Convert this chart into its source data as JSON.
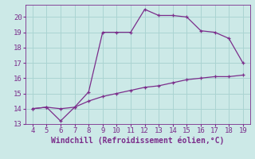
{
  "title": "",
  "xlabel": "Windchill (Refroidissement éolien,°C)",
  "xlim": [
    3.5,
    19.5
  ],
  "ylim": [
    13,
    20.8
  ],
  "xticks": [
    4,
    5,
    6,
    7,
    8,
    9,
    10,
    11,
    12,
    13,
    14,
    15,
    16,
    17,
    18,
    19
  ],
  "yticks": [
    13,
    14,
    15,
    16,
    17,
    18,
    19,
    20
  ],
  "bg_color": "#cce9e7",
  "line_color": "#7b2d8b",
  "line1_x": [
    4,
    5,
    6,
    7,
    8,
    9,
    10,
    11,
    12,
    13,
    14,
    15,
    16,
    17,
    18,
    19
  ],
  "line1_y": [
    14.0,
    14.1,
    13.2,
    14.1,
    15.1,
    19.0,
    19.0,
    19.0,
    20.5,
    20.1,
    20.1,
    20.0,
    19.1,
    19.0,
    18.6,
    17.0
  ],
  "line2_x": [
    4,
    5,
    6,
    7,
    8,
    9,
    10,
    11,
    12,
    13,
    14,
    15,
    16,
    17,
    18,
    19
  ],
  "line2_y": [
    14.0,
    14.1,
    14.0,
    14.1,
    14.5,
    14.8,
    15.0,
    15.2,
    15.4,
    15.5,
    15.7,
    15.9,
    16.0,
    16.1,
    16.1,
    16.2
  ],
  "grid_color": "#aad4d2",
  "font_color": "#7b2d8b",
  "tick_font_size": 6.5,
  "label_font_size": 7.0
}
